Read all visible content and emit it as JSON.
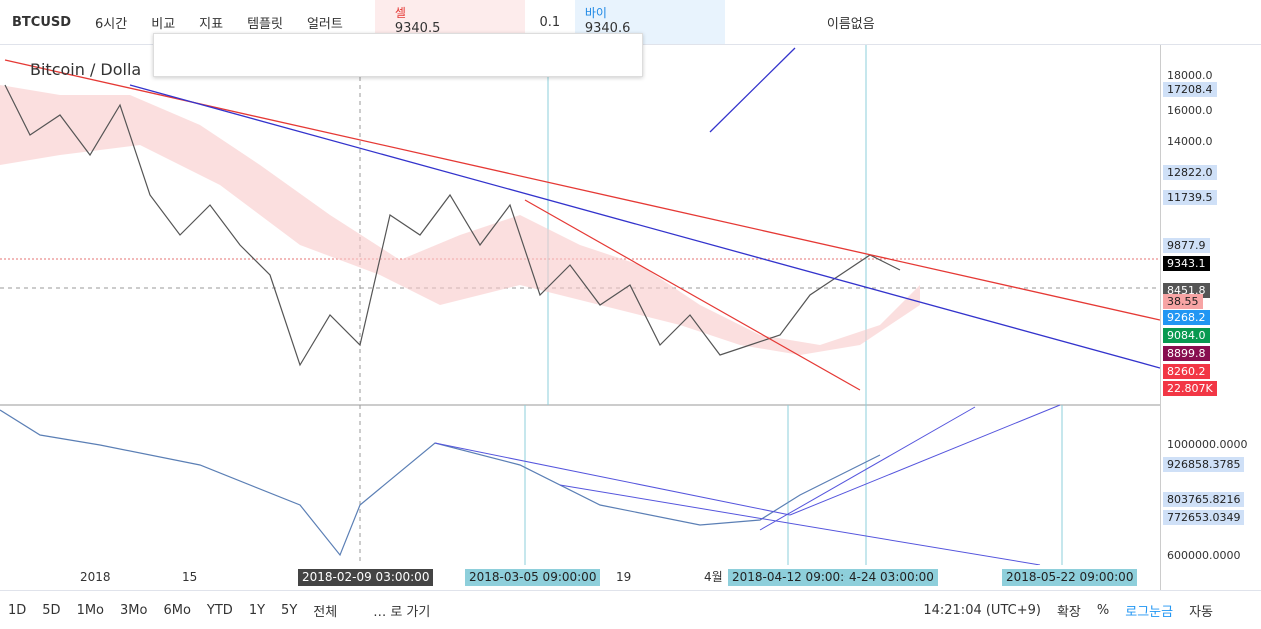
{
  "toolbar": {
    "symbol": "BTCUSD",
    "interval": "6시간",
    "items": [
      "비교",
      "지표",
      "템플릿",
      "얼러트"
    ],
    "sell": {
      "label": "셀",
      "price": "9340.5"
    },
    "spread": "0.1",
    "buy": {
      "label": "바이",
      "price": "9340.6"
    },
    "layout_name": "이름없음"
  },
  "chart": {
    "title": "Bitcoin / Dolla",
    "price_axis": [
      {
        "label": "18000.0",
        "style": "plain"
      },
      {
        "label": "17208.4",
        "style": "light"
      },
      {
        "label": "16000.0",
        "style": "plain"
      },
      {
        "label": "14000.0",
        "style": "plain"
      },
      {
        "label": "12822.0",
        "style": "light"
      },
      {
        "label": "11739.5",
        "style": "light"
      },
      {
        "label": "9877.9",
        "style": "light"
      },
      {
        "label": "9343.1",
        "style": "black"
      },
      {
        "label": "8451.8",
        "style": "gray"
      },
      {
        "label": "38.55",
        "style": "pink"
      },
      {
        "label": "9268.2",
        "style": "blue"
      },
      {
        "label": "9084.0",
        "style": "green"
      },
      {
        "label": "8899.8",
        "style": "maroon"
      },
      {
        "label": "8260.2",
        "style": "red"
      },
      {
        "label": "22.807K",
        "style": "red"
      }
    ],
    "indicator_axis": [
      {
        "label": "1000000.0000",
        "style": "plain"
      },
      {
        "label": "926858.3785",
        "style": "light"
      },
      {
        "label": "803765.8216",
        "style": "light"
      },
      {
        "label": "772653.0349",
        "style": "light"
      },
      {
        "label": "600000.0000",
        "style": "plain"
      }
    ],
    "time_axis": [
      {
        "label": "2018",
        "style": "plain"
      },
      {
        "label": "15",
        "style": "plain"
      },
      {
        "label": "2018-02-09 03:00:00",
        "style": "dark"
      },
      {
        "label": "2018-03-05 09:00:00",
        "style": "teal"
      },
      {
        "label": "19",
        "style": "plain"
      },
      {
        "label": "4월",
        "style": "plain"
      },
      {
        "label": "2018-04-12 09:00:00",
        "style": "teal"
      },
      {
        "label": "4-24 03:00:00",
        "style": "teal"
      },
      {
        "label": "2018-05-22 09:00:00",
        "style": "teal"
      }
    ]
  },
  "bottom_bar": {
    "ranges": [
      "1D",
      "5D",
      "1Mo",
      "3Mo",
      "6Mo",
      "YTD",
      "1Y",
      "5Y",
      "전체"
    ],
    "goto": "… 로 가기",
    "time": "14:21:04 (UTC+9)",
    "options": [
      "확장",
      "%",
      "로그눈금",
      "자동"
    ]
  }
}
